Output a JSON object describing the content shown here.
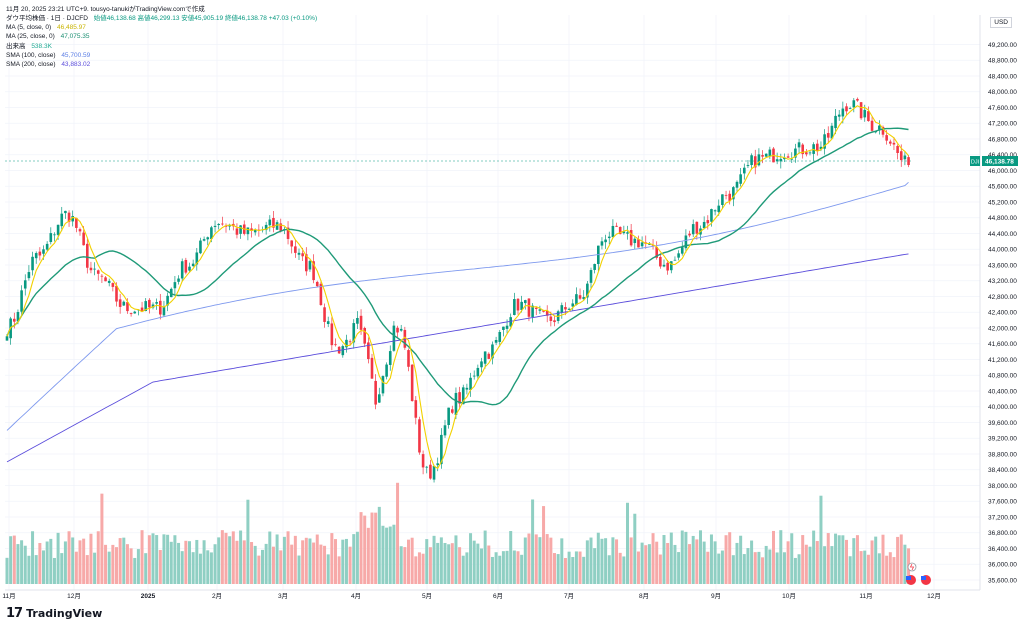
{
  "header": {
    "text": "11月 20, 2025 23:21 UTC+9.  tousyo-tanukiがTradingView.comで作成"
  },
  "legend": {
    "symbol": "ダウ平均株価 · 1日 · DJCFD",
    "ohlc": "始値46,138.68 高値46,299.13 安値45,905.19 終値46,138.78 +47.03 (+0.10%)",
    "ma5_label": "MA (5, close, 0)",
    "ma5_value": "46,485.97",
    "ma25_label": "MA (25, close, 0)",
    "ma25_value": "47,075.35",
    "volume_label": "出来高",
    "volume_value": "538.3K",
    "sma100_label": "SMA (100, close)",
    "sma100_value": "45,700.59",
    "sma200_label": "SMA (200, close)",
    "sma200_value": "43,883.02"
  },
  "currency": "USD",
  "price_badge": {
    "tag": "DJI",
    "value": "46,138.78"
  },
  "colors": {
    "up": "#089981",
    "down": "#f23645",
    "vol_up": "#8fcfc3",
    "vol_down": "#f7a9a8",
    "ma5": "#f2d100",
    "ma25": "#1f9a78",
    "sma100": "#7e99ee",
    "sma200": "#5a4cdb"
  },
  "brand": "TradingView",
  "chart_data": {
    "type": "candlestick",
    "title": "ダウ平均株価 · 1日 · DJCFD",
    "ylabel": "USD",
    "ylim": [
      35600,
      49600
    ],
    "y_ticks": [
      "49,200.00",
      "48,800.00",
      "48,400.00",
      "48,000.00",
      "47,600.00",
      "47,200.00",
      "46,800.00",
      "46,400.00",
      "46,000.00",
      "45,600.00",
      "45,200.00",
      "44,800.00",
      "44,400.00",
      "44,000.00",
      "43,600.00",
      "43,200.00",
      "42,800.00",
      "42,400.00",
      "42,000.00",
      "41,600.00",
      "41,200.00",
      "40,800.00",
      "40,400.00",
      "40,000.00",
      "39,600.00",
      "39,200.00",
      "38,800.00",
      "38,400.00",
      "38,000.00",
      "37,600.00",
      "37,200.00",
      "36,800.00",
      "36,400.00",
      "36,000.00",
      "35,600.00"
    ],
    "x_ticks": [
      "11月",
      "12月",
      "2025",
      "2月",
      "3月",
      "4月",
      "5月",
      "6月",
      "7月",
      "8月",
      "9月",
      "10月",
      "11月",
      "12月"
    ],
    "last_close": 46138.78,
    "anchors": [
      {
        "month": "11月",
        "close": 42000
      },
      {
        "month": "11月",
        "close": 43800
      },
      {
        "month": "12月",
        "close": 44900
      },
      {
        "month": "12月",
        "close": 43300
      },
      {
        "month": "12月",
        "close": 42500
      },
      {
        "month": "2025",
        "close": 42500
      },
      {
        "month": "2025",
        "close": 43600
      },
      {
        "month": "2025",
        "close": 44700
      },
      {
        "month": "2月",
        "close": 44400
      },
      {
        "month": "2月",
        "close": 44600
      },
      {
        "month": "3月",
        "close": 43600
      },
      {
        "month": "3月",
        "close": 41500
      },
      {
        "month": "3月",
        "close": 42300
      },
      {
        "month": "4月",
        "close": 42000
      },
      {
        "month": "4月",
        "close": 38300
      },
      {
        "month": "4月",
        "close": 40200
      },
      {
        "month": "5月",
        "close": 41400
      },
      {
        "month": "5月",
        "close": 42600
      },
      {
        "month": "6月",
        "close": 42200
      },
      {
        "month": "6月",
        "close": 42700
      },
      {
        "month": "7月",
        "close": 44400
      },
      {
        "month": "7月",
        "close": 44200
      },
      {
        "month": "8月",
        "close": 43600
      },
      {
        "month": "8月",
        "close": 44600
      },
      {
        "month": "9月",
        "close": 45400
      },
      {
        "month": "9月",
        "close": 46300
      },
      {
        "month": "10月",
        "close": 46500
      },
      {
        "month": "10月",
        "close": 46600
      },
      {
        "month": "11月",
        "close": 47700
      },
      {
        "month": "11月",
        "close": 47100
      },
      {
        "month": "11月",
        "close": 46138.78
      }
    ],
    "series": [
      {
        "name": "MA (5, close, 0)",
        "last": 46485.97
      },
      {
        "name": "MA (25, close, 0)",
        "last": 47075.35
      },
      {
        "name": "SMA (100, close)",
        "last": 45700.59
      },
      {
        "name": "SMA (200, close)",
        "last": 43883.02
      },
      {
        "name": "出来高",
        "last": "538.3K"
      }
    ]
  }
}
